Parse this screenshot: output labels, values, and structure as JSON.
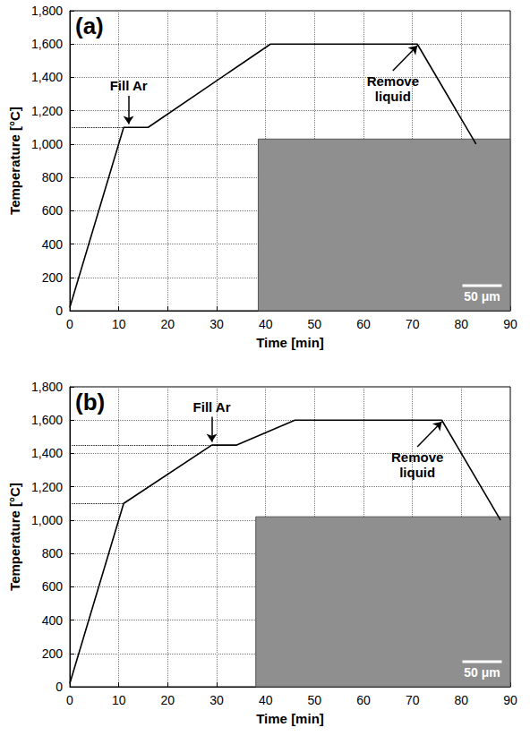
{
  "chart_data": [
    {
      "type": "line",
      "title": "(a)",
      "color": "#000000",
      "x": [
        0,
        11,
        16,
        41,
        71,
        83
      ],
      "values": [
        20,
        1100,
        1100,
        1600,
        1600,
        1000
      ],
      "xlabel": "Time [min]",
      "ylabel": "Temperature [°C]",
      "xlim": [
        0,
        90
      ],
      "xticks": [
        0,
        10,
        20,
        30,
        40,
        50,
        60,
        70,
        80,
        90
      ],
      "ylim": [
        0,
        1800
      ],
      "yticks": [
        0,
        200,
        400,
        600,
        800,
        1000,
        1200,
        1400,
        1600,
        1800
      ],
      "grid": true,
      "reference_lines": [
        {
          "y": 1100,
          "x": [
            0,
            16
          ]
        }
      ],
      "annotations": [
        {
          "text": "Fill Ar",
          "xy": [
            12,
            1120
          ],
          "xytext": [
            12,
            1290
          ]
        },
        {
          "text": "Remove liquid",
          "xy": [
            71,
            1590
          ],
          "xytext": [
            66,
            1440
          ]
        }
      ],
      "inset": {
        "x": [
          38.5,
          90
        ],
        "y": [
          0,
          1030
        ],
        "scale_bar": "50 μm"
      }
    },
    {
      "type": "line",
      "title": "(b)",
      "color": "#000000",
      "x": [
        0,
        11,
        29,
        34,
        46,
        76,
        88
      ],
      "values": [
        20,
        1100,
        1450,
        1450,
        1600,
        1600,
        1000
      ],
      "xlabel": "Time [min]",
      "ylabel": "Temperature [°C]",
      "xlim": [
        0,
        90
      ],
      "xticks": [
        0,
        10,
        20,
        30,
        40,
        50,
        60,
        70,
        80,
        90
      ],
      "ylim": [
        0,
        1800
      ],
      "yticks": [
        0,
        200,
        400,
        600,
        800,
        1000,
        1200,
        1400,
        1600,
        1800
      ],
      "grid": true,
      "reference_lines": [
        {
          "y": 1450,
          "x": [
            0,
            29
          ]
        },
        {
          "y": 1100,
          "x": [
            0,
            11
          ]
        }
      ],
      "annotations": [
        {
          "text": "Fill Ar",
          "xy": [
            29,
            1470
          ],
          "xytext": [
            29,
            1620
          ]
        },
        {
          "text": "Remove liquid",
          "xy": [
            76,
            1590
          ],
          "xytext": [
            71,
            1440
          ]
        }
      ],
      "inset": {
        "x": [
          38,
          90
        ],
        "y": [
          0,
          1020
        ],
        "scale_bar": "50 μm"
      }
    }
  ]
}
